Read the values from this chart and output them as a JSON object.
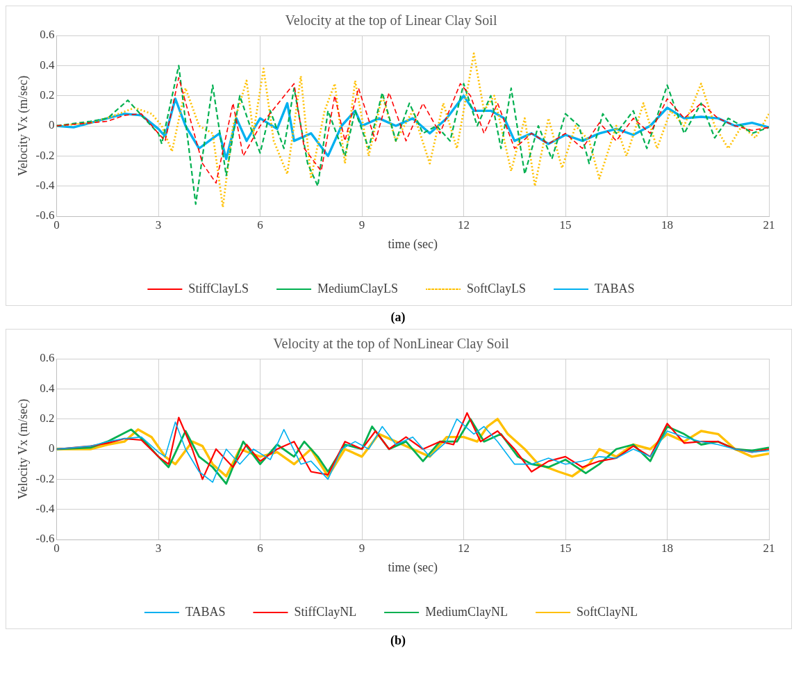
{
  "chart_data": [
    {
      "type": "line",
      "title": "Velocity at the top of Linear Clay Soil",
      "xlabel": "time (sec)",
      "ylabel": "Velocity Vx (m/sec)",
      "annotations": [
        "(a)"
      ],
      "xlim": [
        0,
        21
      ],
      "xticks": [
        0,
        3,
        6,
        9,
        12,
        15,
        18,
        21
      ],
      "ylim": [
        -0.6,
        0.6
      ],
      "yticks": [
        -0.6,
        -0.4,
        -0.2,
        0.0,
        0.2,
        0.4,
        0.6
      ],
      "grid": true,
      "legend": "bottom",
      "marker": "none",
      "series": [
        {
          "name": "StiffClayLS",
          "color": "#ff0000",
          "line_style": "dashed",
          "x": [
            0,
            1,
            1.5,
            2,
            2.5,
            3,
            3.2,
            3.6,
            4.3,
            4.7,
            5.2,
            5.5,
            6,
            7,
            7.3,
            7.8,
            8.2,
            8.5,
            8.9,
            9.4,
            9.8,
            10.3,
            10.8,
            11.3,
            11.9,
            12.2,
            12.6,
            13,
            13.5,
            14,
            14.5,
            15,
            15.5,
            16,
            16.5,
            17,
            17.5,
            18,
            18.5,
            19,
            19.5,
            20,
            20.5,
            21
          ],
          "values": [
            0,
            0.02,
            0.03,
            0.07,
            0.08,
            -0.05,
            -0.1,
            0.32,
            -0.25,
            -0.38,
            0.15,
            -0.2,
            0,
            0.28,
            -0.15,
            -0.3,
            0.2,
            -0.1,
            0.25,
            -0.1,
            0.22,
            -0.1,
            0.15,
            -0.05,
            0.28,
            0.2,
            -0.05,
            0.15,
            -0.15,
            -0.05,
            -0.12,
            -0.05,
            -0.15,
            0.02,
            -0.1,
            0.05,
            -0.05,
            0.18,
            0.05,
            0.15,
            0.05,
            0,
            -0.03,
            -0.01
          ]
        },
        {
          "name": "MediumClayLS",
          "color": "#00b050",
          "line_style": "dashed",
          "x": [
            0,
            1,
            1.5,
            2.1,
            2.5,
            3,
            3.1,
            3.6,
            4.1,
            4.6,
            5,
            5.4,
            5.7,
            6,
            6.3,
            6.7,
            7,
            7.4,
            7.7,
            8,
            8.5,
            8.8,
            9.2,
            9.6,
            10,
            10.4,
            10.8,
            11.2,
            11.6,
            12,
            12.4,
            12.8,
            13.1,
            13.4,
            13.8,
            14.2,
            14.6,
            15,
            15.4,
            15.7,
            16.1,
            16.5,
            17,
            17.4,
            18,
            18.5,
            19,
            19.4,
            19.8,
            20.2,
            20.5,
            21
          ],
          "values": [
            0,
            0.03,
            0.05,
            0.17,
            0.07,
            -0.05,
            -0.12,
            0.4,
            -0.52,
            0.27,
            -0.33,
            0.2,
            0,
            -0.18,
            0.1,
            -0.15,
            0.25,
            -0.25,
            -0.4,
            0.1,
            -0.2,
            0.1,
            -0.15,
            0.22,
            -0.1,
            0.15,
            -0.05,
            0,
            -0.1,
            0.28,
            0,
            0.2,
            -0.15,
            0.25,
            -0.32,
            0,
            -0.22,
            0.08,
            0,
            -0.25,
            0.08,
            -0.05,
            0.1,
            -0.15,
            0.27,
            -0.05,
            0.15,
            -0.08,
            0.05,
            0,
            -0.05,
            -0.01
          ]
        },
        {
          "name": "SoftClayLS",
          "color": "#ffc000",
          "line_style": "dotted",
          "x": [
            0,
            1,
            1.6,
            2.3,
            2.8,
            3.1,
            3.4,
            3.8,
            4.2,
            4.6,
            4.9,
            5.2,
            5.6,
            5.8,
            6.1,
            6.4,
            6.8,
            7.2,
            7.5,
            7.9,
            8.2,
            8.5,
            8.8,
            9.2,
            9.6,
            10,
            10.5,
            11,
            11.4,
            11.8,
            12.3,
            12.6,
            12.9,
            13.4,
            13.8,
            14.1,
            14.5,
            14.9,
            15.3,
            15.7,
            16,
            16.5,
            16.8,
            17.3,
            17.7,
            18.1,
            18.5,
            19,
            19.4,
            19.8,
            20.2,
            20.6,
            21
          ],
          "values": [
            0,
            0.02,
            0.06,
            0.12,
            0.08,
            0,
            -0.17,
            0.25,
            0,
            -0.05,
            -0.54,
            0,
            0.3,
            -0.05,
            0.38,
            -0.1,
            -0.32,
            0.33,
            -0.35,
            0.1,
            0.28,
            -0.25,
            0.3,
            -0.2,
            0.2,
            -0.1,
            0.1,
            -0.25,
            0.15,
            -0.15,
            0.48,
            0.1,
            0.2,
            -0.3,
            0.05,
            -0.4,
            0.05,
            -0.28,
            0,
            -0.1,
            -0.35,
            0,
            -0.2,
            0.15,
            -0.15,
            0.1,
            0,
            0.28,
            0,
            -0.15,
            0,
            -0.08,
            0.08
          ]
        },
        {
          "name": "TABAS",
          "color": "#00b0f0",
          "line_style": "solid",
          "x": [
            0,
            0.5,
            1,
            1.5,
            2,
            2.5,
            3,
            3.2,
            3.5,
            3.8,
            4.2,
            4.5,
            4.8,
            5,
            5.3,
            5.6,
            6,
            6.5,
            6.8,
            7,
            7.5,
            8,
            8.4,
            8.8,
            9,
            9.5,
            10,
            10.5,
            11,
            11.5,
            12,
            12.3,
            12.8,
            13.2,
            13.5,
            14,
            14.5,
            15,
            15.5,
            16,
            16.5,
            17,
            17.5,
            18,
            18.5,
            19,
            19.5,
            20,
            20.5,
            21
          ],
          "values": [
            0,
            -0.01,
            0.02,
            0.05,
            0.08,
            0.07,
            -0.02,
            -0.07,
            0.18,
            0,
            -0.15,
            -0.1,
            -0.05,
            -0.22,
            0.05,
            -0.1,
            0.05,
            -0.02,
            0.15,
            -0.1,
            -0.05,
            -0.2,
            0,
            0.1,
            0,
            0.05,
            0,
            0.05,
            -0.05,
            0.05,
            0.2,
            0.1,
            0.1,
            0.05,
            -0.1,
            -0.05,
            -0.12,
            -0.06,
            -0.1,
            -0.05,
            -0.02,
            -0.06,
            0,
            0.12,
            0.05,
            0.06,
            0.05,
            0,
            0.02,
            -0.01
          ]
        }
      ]
    },
    {
      "type": "line",
      "title": "Velocity at the top of NonLinear Clay Soil",
      "xlabel": "time (sec)",
      "ylabel": "Velocity Vx (m/sec)",
      "annotations": [
        "(b)"
      ],
      "xlim": [
        0,
        21
      ],
      "xticks": [
        0,
        3,
        6,
        9,
        12,
        15,
        18,
        21
      ],
      "ylim": [
        -0.6,
        0.6
      ],
      "yticks": [
        -0.6,
        -0.4,
        -0.2,
        0.0,
        0.2,
        0.4,
        0.6
      ],
      "grid": true,
      "legend": "bottom",
      "marker": "none",
      "series": [
        {
          "name": "TABAS",
          "color": "#00b0f0",
          "line_style": "solid",
          "x": [
            0,
            1,
            1.5,
            2,
            2.5,
            3,
            3.2,
            3.5,
            3.8,
            4.2,
            4.6,
            5,
            5.4,
            5.8,
            6.3,
            6.7,
            7.2,
            7.5,
            8,
            8.4,
            8.8,
            9.2,
            9.6,
            10,
            10.5,
            11,
            11.5,
            11.8,
            12.3,
            12.6,
            13,
            13.5,
            14,
            14.5,
            15,
            15.5,
            16,
            16.5,
            17,
            17.5,
            18,
            18.5,
            19,
            19.5,
            20,
            20.5,
            21
          ],
          "values": [
            0,
            0.02,
            0.05,
            0.07,
            0.08,
            -0.02,
            -0.05,
            0.18,
            0,
            -0.15,
            -0.22,
            0,
            -0.1,
            0,
            -0.07,
            0.13,
            -0.1,
            -0.08,
            -0.2,
            0,
            0.05,
            0,
            0.15,
            0.03,
            0.08,
            -0.05,
            0.05,
            0.2,
            0.1,
            0.15,
            0.05,
            -0.1,
            -0.1,
            -0.06,
            -0.1,
            -0.08,
            -0.05,
            -0.06,
            0,
            -0.05,
            0.12,
            0.08,
            0.05,
            0.03,
            0,
            -0.02,
            -0.01
          ]
        },
        {
          "name": "StiffClayNL",
          "color": "#ff0000",
          "line_style": "solid",
          "x": [
            0,
            1,
            1.5,
            2,
            2.5,
            3,
            3.3,
            3.6,
            4,
            4.3,
            4.7,
            5.2,
            5.6,
            6,
            6.5,
            7,
            7.5,
            8,
            8.5,
            9,
            9.4,
            9.8,
            10.3,
            10.8,
            11.3,
            11.7,
            12.1,
            12.5,
            13,
            13.5,
            14,
            14.5,
            15,
            15.5,
            16,
            16.5,
            17,
            17.5,
            18,
            18.5,
            19,
            19.5,
            20,
            20.5,
            21
          ],
          "values": [
            0,
            0.02,
            0.04,
            0.07,
            0.06,
            -0.05,
            -0.1,
            0.21,
            0,
            -0.2,
            0,
            -0.12,
            0.03,
            -0.08,
            0,
            0.05,
            -0.15,
            -0.17,
            0.05,
            0,
            0.12,
            0,
            0.08,
            0,
            0.05,
            0.03,
            0.24,
            0.05,
            0.12,
            0,
            -0.15,
            -0.08,
            -0.05,
            -0.12,
            -0.08,
            -0.06,
            0.02,
            -0.05,
            0.17,
            0.04,
            0.05,
            0.05,
            0,
            -0.02,
            0
          ]
        },
        {
          "name": "MediumClayNL",
          "color": "#00b050",
          "line_style": "solid",
          "x": [
            0,
            1,
            1.5,
            2.2,
            2.6,
            3,
            3.3,
            3.8,
            4.2,
            4.6,
            5,
            5.5,
            6,
            6.5,
            7,
            7.3,
            7.7,
            8,
            8.5,
            9,
            9.3,
            9.8,
            10.3,
            10.8,
            11.3,
            11.8,
            12.2,
            12.6,
            13.1,
            13.6,
            14,
            14.5,
            15,
            15.6,
            16,
            16.5,
            17,
            17.5,
            18,
            18.5,
            19,
            19.5,
            20,
            20.5,
            21
          ],
          "values": [
            0,
            0.01,
            0.05,
            0.13,
            0.05,
            -0.05,
            -0.12,
            0.12,
            -0.05,
            -0.12,
            -0.23,
            0.05,
            -0.1,
            0.03,
            -0.05,
            0.05,
            -0.05,
            -0.15,
            0.03,
            0,
            0.15,
            0,
            0.05,
            -0.08,
            0.05,
            0.05,
            0.2,
            0.05,
            0.1,
            -0.05,
            -0.1,
            -0.12,
            -0.07,
            -0.16,
            -0.1,
            0,
            0.03,
            -0.08,
            0.15,
            0.1,
            0.03,
            0.05,
            0,
            -0.01,
            0.01
          ]
        },
        {
          "name": "SoftClayNL",
          "color": "#ffc000",
          "line_style": "solid",
          "x": [
            0,
            1,
            1.5,
            2,
            2.4,
            2.8,
            3.2,
            3.5,
            4,
            4.3,
            4.6,
            5,
            5.4,
            6,
            6.5,
            7,
            7.5,
            8,
            8.5,
            9,
            9.5,
            10,
            10.5,
            11,
            11.5,
            12,
            12.4,
            12.7,
            13,
            13.3,
            13.8,
            14.2,
            14.8,
            15.2,
            15.7,
            16,
            16.5,
            17,
            17.5,
            18,
            18.5,
            19,
            19.5,
            20,
            20.5,
            21
          ],
          "values": [
            0,
            0,
            0.03,
            0.05,
            0.13,
            0.08,
            -0.05,
            -0.1,
            0.05,
            0.02,
            -0.1,
            -0.18,
            0,
            -0.05,
            -0.02,
            -0.1,
            0,
            -0.18,
            0,
            -0.05,
            0.1,
            0.05,
            0,
            -0.05,
            0.08,
            0.08,
            0.05,
            0.15,
            0.2,
            0.1,
            0,
            -0.1,
            -0.15,
            -0.18,
            -0.1,
            0,
            -0.05,
            0.03,
            0,
            0.1,
            0.05,
            0.12,
            0.1,
            0,
            -0.05,
            -0.03
          ]
        }
      ]
    }
  ]
}
